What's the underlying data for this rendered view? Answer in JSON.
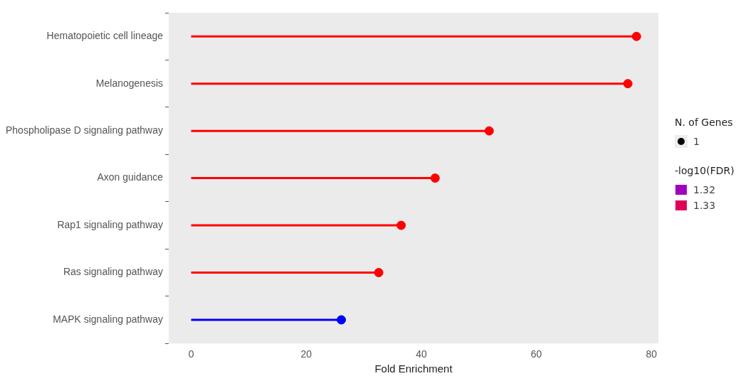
{
  "chart_data": {
    "type": "lollipop",
    "orientation": "horizontal",
    "xlabel": "Fold Enrichment",
    "categories": [
      "Hematopoietic cell lineage",
      "Melanogenesis",
      "Phospholipase D signaling pathway",
      "Axon guidance",
      "Rap1 signaling pathway",
      "Ras signaling pathway",
      "MAPK signaling pathway"
    ],
    "values": [
      77.4,
      75.9,
      51.8,
      42.4,
      36.5,
      32.6,
      26.1
    ],
    "colors": [
      "#ff0000",
      "#ff0000",
      "#ff0000",
      "#ff0000",
      "#ff0000",
      "#ff0000",
      "#0000ff"
    ],
    "xlim": [
      -3.9,
      81.2
    ],
    "xticks": [
      0,
      20,
      40,
      60,
      80
    ],
    "grid": false,
    "marker": "circle",
    "annotations": [
      "N. of Genes",
      "1",
      "-log10(FDR)",
      "1.32",
      "1.33"
    ]
  }
}
